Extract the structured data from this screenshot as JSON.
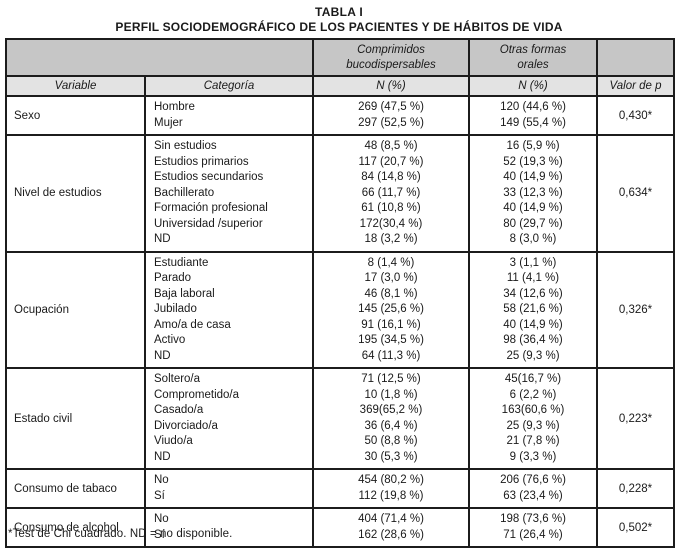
{
  "title": "TABLA I",
  "subtitle": "PERFIL SOCIODEMOGRÁFICO DE LOS PACIENTES Y DE HÁBITOS DE VIDA",
  "footnote": "*Test de Chi cuadrado. ND = no disponible.",
  "colors": {
    "group_header_bg": "#c6c6c6",
    "column_header_bg": "#e3e3e3",
    "border": "#1c1c1c",
    "text": "#1a1a1a",
    "background": "#ffffff"
  },
  "table": {
    "group_headers": {
      "left_merged": "",
      "comprimidos": "Comprimidos\nbucodispersables",
      "otras": "Otras formas\norales",
      "right": ""
    },
    "column_headers": [
      "Variable",
      "Categoría",
      "N (%)",
      "N (%)",
      "Valor de p"
    ],
    "rows": [
      {
        "variable": "Sexo",
        "categories": [
          "Hombre",
          "Mujer"
        ],
        "comprimidos": [
          "269 (47,5 %)",
          "297 (52,5 %)"
        ],
        "otras": [
          "120 (44,6 %)",
          "149 (55,4 %)"
        ],
        "p": "0,430*"
      },
      {
        "variable": "Nivel de estudios",
        "categories": [
          "Sin estudios",
          "Estudios primarios",
          "Estudios secundarios",
          "Bachillerato",
          "Formación profesional",
          "Universidad /superior",
          "ND"
        ],
        "comprimidos": [
          "48 (8,5 %)",
          "117 (20,7 %)",
          "84 (14,8 %)",
          "66 (11,7 %)",
          "61 (10,8 %)",
          "172(30,4 %)",
          "18 (3,2 %)"
        ],
        "otras": [
          "16 (5,9 %)",
          "52 (19,3 %)",
          "40 (14,9 %)",
          "33 (12,3 %)",
          "40 (14,9 %)",
          "80 (29,7 %)",
          "8 (3,0 %)"
        ],
        "p": "0,634*"
      },
      {
        "variable": "Ocupación",
        "categories": [
          "Estudiante",
          "Parado",
          "Baja laboral",
          "Jubilado",
          "Amo/a de casa",
          "Activo",
          "ND"
        ],
        "comprimidos": [
          "8 (1,4 %)",
          "17 (3,0 %)",
          "46 (8,1 %)",
          "145 (25,6 %)",
          "91 (16,1 %)",
          "195 (34,5 %)",
          "64 (11,3 %)"
        ],
        "otras": [
          "3 (1,1 %)",
          "11 (4,1 %)",
          "34 (12,6 %)",
          "58 (21,6 %)",
          "40 (14,9 %)",
          "98 (36,4 %)",
          "25 (9,3 %)"
        ],
        "p": "0,326*"
      },
      {
        "variable": "Estado civil",
        "categories": [
          "Soltero/a",
          "Comprometido/a",
          "Casado/a",
          "Divorciado/a",
          "Viudo/a",
          "ND"
        ],
        "comprimidos": [
          "71 (12,5 %)",
          "10 (1,8 %)",
          "369(65,2 %)",
          "36 (6,4 %)",
          "50 (8,8 %)",
          "30 (5,3 %)"
        ],
        "otras": [
          "45(16,7 %)",
          "6 (2,2 %)",
          "163(60,6 %)",
          "25 (9,3 %)",
          "21 (7,8 %)",
          "9 (3,3 %)"
        ],
        "p": "0,223*"
      },
      {
        "variable": "Consumo de tabaco",
        "categories": [
          "No",
          "Sí"
        ],
        "comprimidos": [
          "454 (80,2 %)",
          "112 (19,8 %)"
        ],
        "otras": [
          "206 (76,6 %)",
          "63 (23,4 %)"
        ],
        "p": "0,228*"
      },
      {
        "variable": "Consumo de alcohol",
        "categories": [
          "No",
          "Sí"
        ],
        "comprimidos": [
          "404 (71,4 %)",
          "162 (28,6 %)"
        ],
        "otras": [
          "198 (73,6 %)",
          "71 (26,4 %)"
        ],
        "p": "0,502*"
      }
    ]
  }
}
